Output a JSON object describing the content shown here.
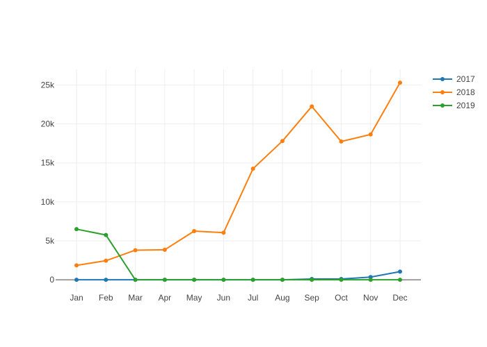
{
  "chart_data": {
    "type": "line",
    "categories": [
      "Jan",
      "Feb",
      "Mar",
      "Apr",
      "May",
      "Jun",
      "Jul",
      "Aug",
      "Sep",
      "Oct",
      "Nov",
      "Dec"
    ],
    "yticks": [
      0,
      5000,
      10000,
      15000,
      20000,
      25000
    ],
    "ytick_labels": [
      "0",
      "5k",
      "10k",
      "15k",
      "20k",
      "25k"
    ],
    "ylim": [
      -1500,
      27000
    ],
    "grid": true,
    "legend_position": "top-right",
    "series": [
      {
        "name": "2017",
        "color": "#1f77b4",
        "values": [
          0,
          0,
          0,
          0,
          0,
          0,
          0,
          0,
          100,
          100,
          350,
          1050
        ]
      },
      {
        "name": "2018",
        "color": "#ff7f0e",
        "values": [
          1850,
          2450,
          3800,
          3850,
          6250,
          6050,
          14250,
          17800,
          22250,
          17750,
          18650,
          25300
        ]
      },
      {
        "name": "2019",
        "color": "#2ca02c",
        "values": [
          6500,
          5750,
          0,
          0,
          0,
          0,
          0,
          0,
          0,
          0,
          0,
          0
        ]
      }
    ]
  }
}
